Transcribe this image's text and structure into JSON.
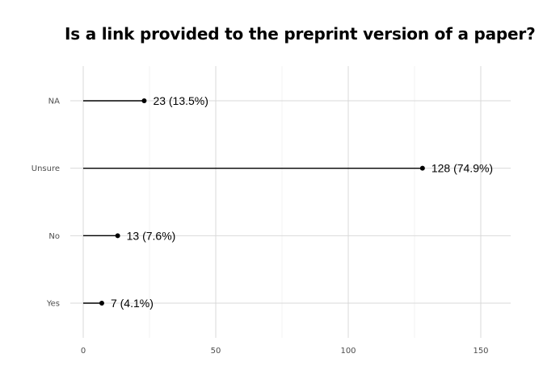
{
  "chart_data": {
    "type": "lollipop",
    "title": "Is a link provided to the preprint version of a paper?",
    "xlabel": "",
    "ylabel": "",
    "categories": [
      "Yes",
      "No",
      "Unsure",
      "NA"
    ],
    "values": [
      7,
      13,
      128,
      23
    ],
    "labels": [
      "7 (4.1%)",
      "13 (7.6%)",
      "128 (74.9%)",
      "23 (13.5%)"
    ],
    "xlim": [
      0,
      162
    ],
    "x_ticks": [
      0,
      50,
      100,
      150
    ],
    "grid": true,
    "legend": "none",
    "colors": {
      "stem": "#000000",
      "point": "#000000",
      "grid_major": "#d9d9d9",
      "grid_minor": "#ebebeb",
      "tick_text": "#4d4d4d"
    }
  }
}
